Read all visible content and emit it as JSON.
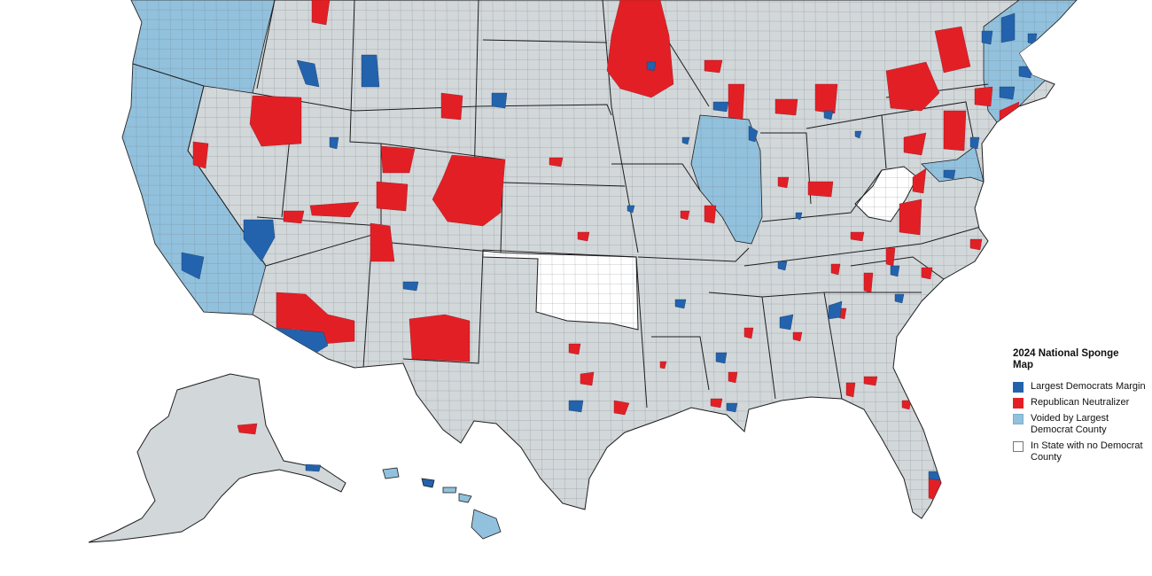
{
  "legend": {
    "title": "2024 National Sponge Map",
    "items": [
      {
        "label": "Largest Democrats Margin",
        "color": "#2363ad"
      },
      {
        "label": "Republican Neutralizer",
        "color": "#e31f26"
      },
      {
        "label": "Voided by Largest Democrat County",
        "color": "#92c1dd"
      },
      {
        "label": "In State with no Democrat County",
        "color": "#ffffff"
      }
    ]
  },
  "colors": {
    "base_county": "#d2d7da",
    "state_border": "#1d1d1d",
    "county_border": "#6e7378",
    "democrat": "#2363ad",
    "republican": "#e31f26",
    "voided": "#92c1dd",
    "no_democrat": "#ffffff"
  }
}
